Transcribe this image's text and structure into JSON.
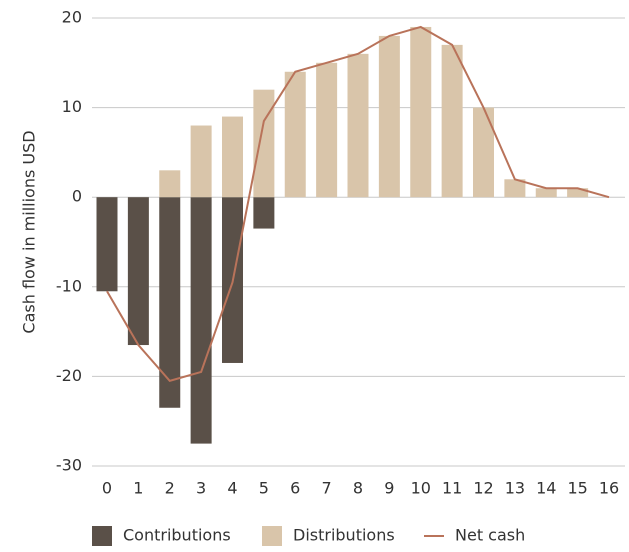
{
  "chart_data": {
    "type": "bar_line",
    "y_label": "Cash flow in millions USD",
    "categories": [
      "0",
      "1",
      "2",
      "3",
      "4",
      "5",
      "6",
      "7",
      "8",
      "9",
      "10",
      "11",
      "12",
      "13",
      "14",
      "15",
      "16"
    ],
    "series": [
      {
        "name": "Contributions",
        "type": "bar",
        "color": "#5a5048",
        "values": [
          -10.5,
          -16.5,
          -23.5,
          -27.5,
          -18.5,
          -3.5,
          0,
          0,
          0,
          0,
          0,
          0,
          0,
          0,
          0,
          0,
          0
        ]
      },
      {
        "name": "Distributions",
        "type": "bar",
        "color": "#d9c5aa",
        "values": [
          0,
          0,
          3,
          8,
          9,
          12,
          14,
          15,
          16,
          18,
          19,
          17,
          10,
          2,
          1,
          1,
          0
        ]
      },
      {
        "name": "Net cash",
        "type": "line",
        "color": "#b9735a",
        "values": [
          -10.5,
          -16.5,
          -20.5,
          -19.5,
          -9.5,
          8.5,
          14,
          15,
          16,
          18,
          19,
          17,
          10,
          2,
          1,
          1,
          0
        ]
      }
    ],
    "ylim": [
      -30,
      20
    ],
    "yticks": [
      -30,
      -20,
      -10,
      0,
      10,
      20
    ],
    "grid": true
  }
}
